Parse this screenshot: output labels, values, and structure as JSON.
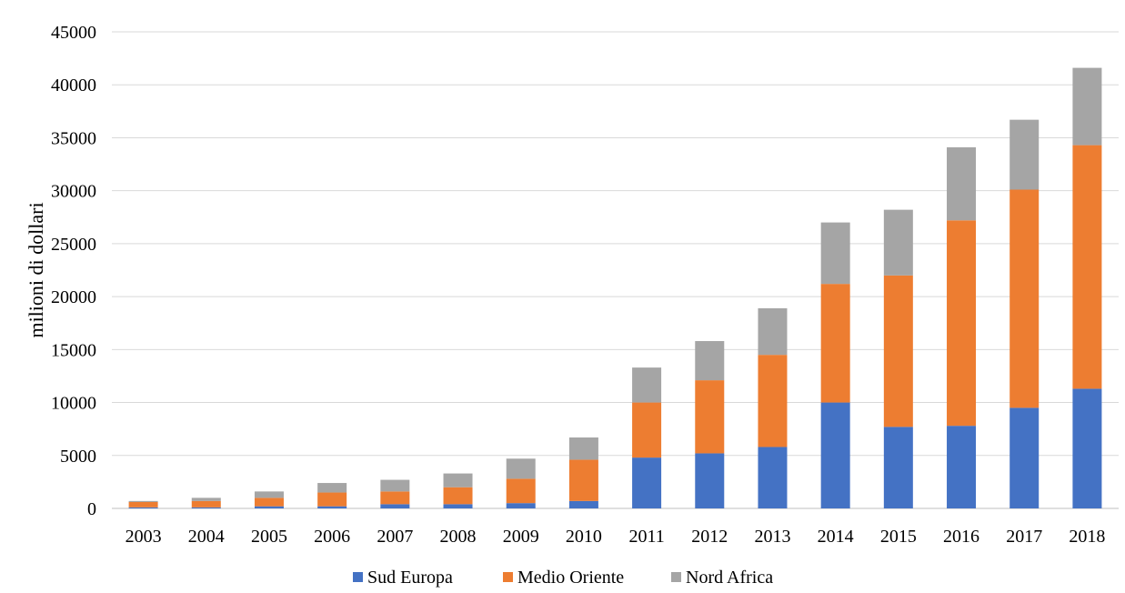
{
  "chart_data": {
    "type": "bar",
    "stacked": true,
    "title": "",
    "xlabel": "",
    "ylabel": "milioni di dollari",
    "ylim": [
      0,
      45000
    ],
    "yticks": [
      "0",
      "5000",
      "10000",
      "15000",
      "20000",
      "25000",
      "30000",
      "35000",
      "40000",
      "45000"
    ],
    "grid": true,
    "legend_position": "bottom",
    "categories": [
      "2003",
      "2004",
      "2005",
      "2006",
      "2007",
      "2008",
      "2009",
      "2010",
      "2011",
      "2012",
      "2013",
      "2014",
      "2015",
      "2016",
      "2017",
      "2018"
    ],
    "series": [
      {
        "name": "Sud Europa",
        "color": "#4472c4",
        "values": [
          100,
          100,
          200,
          200,
          400,
          400,
          500,
          700,
          4800,
          5200,
          5800,
          10000,
          7700,
          7800,
          9500,
          11300
        ]
      },
      {
        "name": "Medio Oriente",
        "color": "#ed7d31",
        "values": [
          500,
          600,
          800,
          1300,
          1200,
          1600,
          2300,
          3900,
          5200,
          6900,
          8700,
          11200,
          14300,
          19400,
          20600,
          23000
        ]
      },
      {
        "name": "Nord Africa",
        "color": "#a5a5a5",
        "values": [
          100,
          300,
          600,
          900,
          1100,
          1300,
          1900,
          2100,
          3300,
          3700,
          4400,
          5800,
          6200,
          6900,
          6600,
          7300
        ]
      }
    ]
  }
}
